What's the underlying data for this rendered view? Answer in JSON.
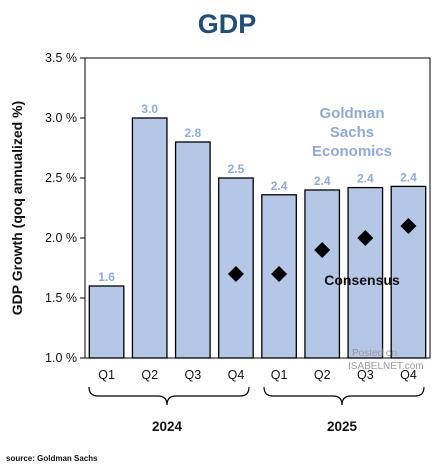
{
  "chart_data": {
    "type": "bar",
    "title": "GDP",
    "ylabel": "GDP Growth (qoq annualized %)",
    "ylim": [
      1.0,
      3.5
    ],
    "yticks": [
      "1.0 %",
      "1.5 %",
      "2.0 %",
      "2.5 %",
      "3.0 %",
      "3.5 %"
    ],
    "ytick_values": [
      1.0,
      1.5,
      2.0,
      2.5,
      3.0,
      3.5
    ],
    "categories": [
      "Q1",
      "Q2",
      "Q3",
      "Q4",
      "Q1",
      "Q2",
      "Q3",
      "Q4"
    ],
    "years": [
      "2024",
      "2025"
    ],
    "grid": false,
    "series": [
      {
        "name": "Goldman Sachs Economics",
        "kind": "bar",
        "color": "#b4c7e7",
        "values": [
          1.6,
          3.0,
          2.8,
          2.5,
          2.36,
          2.4,
          2.42,
          2.43
        ],
        "labels": [
          "1.6",
          "3.0",
          "2.8",
          "2.5",
          "2.4",
          "2.4",
          "2.4",
          "2.4"
        ]
      },
      {
        "name": "Consensus",
        "kind": "marker",
        "color": "#000000",
        "points": [
          [
            3,
            1.7
          ],
          [
            4,
            1.7
          ],
          [
            5,
            1.9
          ],
          [
            6,
            2.0
          ],
          [
            7,
            2.1
          ]
        ]
      }
    ],
    "annotations": {
      "goldman_lines": [
        "Goldman",
        "Sachs",
        "Economics"
      ],
      "consensus_label": "Consensus"
    },
    "label_color": "#8eaadb"
  },
  "watermark": {
    "line1": "Posted on",
    "line2": "ISABELNET.com"
  },
  "source": "source: Goldman Sachs"
}
